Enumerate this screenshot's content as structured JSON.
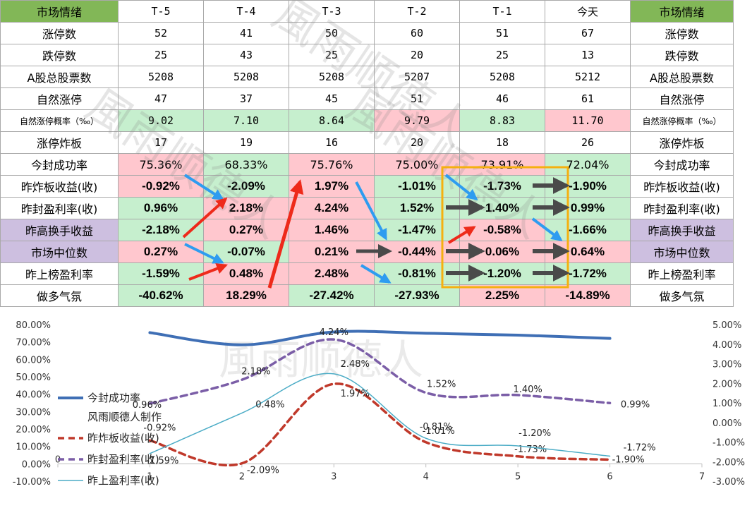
{
  "table": {
    "header": [
      "市场情绪",
      "T-5",
      "T-4",
      "T-3",
      "T-2",
      "T-1",
      "今天",
      "市场情绪"
    ],
    "rows": [
      {
        "label": "涨停数",
        "values": [
          "52",
          "41",
          "50",
          "60",
          "51",
          "67"
        ],
        "color": "red",
        "bg": [
          "",
          "",
          "",
          "",
          "",
          ""
        ],
        "style": "num"
      },
      {
        "label": "跌停数",
        "values": [
          "25",
          "43",
          "25",
          "20",
          "25",
          "13"
        ],
        "color": "green",
        "bg": [
          "",
          "",
          "",
          "",
          "",
          ""
        ],
        "style": "num"
      },
      {
        "label": "A股总股票数",
        "values": [
          "5208",
          "5208",
          "5208",
          "5207",
          "5208",
          "5212"
        ],
        "color": "black",
        "bg": [
          "",
          "",
          "",
          "",
          "",
          ""
        ],
        "style": "num"
      },
      {
        "label": "自然涨停",
        "values": [
          "47",
          "37",
          "45",
          "51",
          "46",
          "61"
        ],
        "color": "red",
        "bg": [
          "",
          "",
          "",
          "",
          "",
          ""
        ],
        "style": "num"
      },
      {
        "label": "自然涨停概率（‰）",
        "values": [
          "9.02",
          "7.10",
          "8.64",
          "9.79",
          "8.83",
          "11.70"
        ],
        "color": "mixed",
        "bg": [
          "lgreen",
          "lgreen",
          "lgreen",
          "pink",
          "lgreen",
          "pink"
        ],
        "style": "num",
        "small": true
      },
      {
        "label": "涨停炸板",
        "values": [
          "17",
          "19",
          "16",
          "20",
          "18",
          "26"
        ],
        "color": "green",
        "bg": [
          "",
          "",
          "",
          "",
          "",
          ""
        ],
        "style": "num"
      },
      {
        "label": "今封成功率",
        "values": [
          "75.36%",
          "68.33%",
          "75.76%",
          "75.00%",
          "73.91%",
          "72.04%"
        ],
        "color": "black",
        "bg": [
          "pink",
          "lgreen",
          "pink",
          "pink",
          "pink",
          "lgreen"
        ],
        "style": "plain"
      },
      {
        "label": "昨炸板收益(收)",
        "values": [
          "-0.92%",
          "-2.09%",
          "1.97%",
          "-1.01%",
          "-1.73%",
          "-1.90%"
        ],
        "color": "mixed",
        "bg": [
          "pink",
          "lgreen",
          "pink",
          "lgreen",
          "lgreen",
          "lgreen"
        ],
        "style": "bold"
      },
      {
        "label": "昨封盈利率(收)",
        "values": [
          "0.96%",
          "2.18%",
          "4.24%",
          "1.52%",
          "1.40%",
          "0.99%"
        ],
        "color": "mixed",
        "bg": [
          "lgreen",
          "pink",
          "pink",
          "lgreen",
          "lgreen",
          "lgreen"
        ],
        "style": "bold"
      },
      {
        "label": "昨高换手收益",
        "values": [
          "-2.18%",
          "0.27%",
          "1.46%",
          "-1.47%",
          "-0.58%",
          "-1.66%"
        ],
        "color": "mixed",
        "bg": [
          "lgreen",
          "pink",
          "pink",
          "lgreen",
          "pink",
          "lgreen"
        ],
        "style": "bold",
        "labelBg": "purple"
      },
      {
        "label": "市场中位数",
        "values": [
          "0.27%",
          "-0.07%",
          "0.21%",
          "-0.44%",
          "0.06%",
          "0.64%"
        ],
        "color": "mixed",
        "bg": [
          "pink",
          "lgreen",
          "pink",
          "pink",
          "pink",
          "pink"
        ],
        "style": "bold",
        "labelBg": "purple"
      },
      {
        "label": "昨上榜盈利率",
        "values": [
          "-1.59%",
          "0.48%",
          "2.48%",
          "-0.81%",
          "-1.20%",
          "-1.72%"
        ],
        "color": "mixed",
        "bg": [
          "lgreen",
          "pink",
          "pink",
          "lgreen",
          "lgreen",
          "lgreen"
        ],
        "style": "bold"
      },
      {
        "label": "做多气氛",
        "values": [
          "-40.62%",
          "18.29%",
          "-27.42%",
          "-27.93%",
          "2.25%",
          "-14.89%"
        ],
        "color": "mixed",
        "bg": [
          "lgreen",
          "pink",
          "lgreen",
          "lgreen",
          "pink",
          "pink"
        ],
        "style": "bold"
      }
    ]
  },
  "colors": {
    "red": "#e03030",
    "green": "#20a060",
    "dark_red": "#c0102a",
    "dark_green": "#0a6a18",
    "pink": "#ffc7ce",
    "light_green": "#c6efce",
    "purple": "#cdbfe0",
    "header_green": "#82b757",
    "highlight_box": "#f5b010",
    "arrow_blue": "#2e9cf0",
    "arrow_red": "#ee2a1a",
    "arrow_gray": "#4a4a4a"
  },
  "watermark": "風雨顺德人",
  "chart_data": {
    "type": "line",
    "x": [
      1,
      2,
      3,
      4,
      5,
      6
    ],
    "xlim": [
      0,
      7
    ],
    "x_ticks": [
      "0",
      "1",
      "2",
      "3",
      "4",
      "5",
      "6",
      "7"
    ],
    "y_left_ticks": [
      "80.00%",
      "70.00%",
      "60.00%",
      "50.00%",
      "40.00%",
      "30.00%",
      "20.00%",
      "10.00%",
      "0.00%",
      "-10.00%"
    ],
    "y_right_ticks": [
      "5.00%",
      "4.00%",
      "3.00%",
      "2.00%",
      "1.00%",
      "0.00%",
      "-1.00%",
      "-2.00%",
      "-3.00%"
    ],
    "ylim_left": [
      -10,
      80
    ],
    "ylim_right": [
      -3,
      5
    ],
    "note": "风雨顺德人制作",
    "series": [
      {
        "name": "今封成功率",
        "axis": "left",
        "values": [
          75.36,
          68.33,
          75.76,
          75.0,
          73.91,
          72.04
        ],
        "color": "#3f6fb5",
        "style": "solid-thick",
        "labels": []
      },
      {
        "name": "昨炸板收益(收)",
        "axis": "right",
        "values": [
          -0.92,
          -2.09,
          1.97,
          -1.01,
          -1.73,
          -1.9
        ],
        "color": "#c0392b",
        "style": "dashed",
        "labels": [
          "-0.92%",
          "-2.09%",
          "1.97%",
          "-1.01%",
          "-1.73%",
          "-1.90%"
        ]
      },
      {
        "name": "昨封盈利率(收)",
        "axis": "right",
        "values": [
          0.96,
          2.18,
          4.24,
          1.52,
          1.4,
          0.99
        ],
        "color": "#7b5ea7",
        "style": "dashed",
        "labels": [
          "0.96%",
          "2.18%",
          "4.24%",
          "1.52%",
          "1.40%",
          "0.99%"
        ]
      },
      {
        "name": "昨上盈利率(收)",
        "axis": "right",
        "values": [
          -1.59,
          0.48,
          2.48,
          -0.81,
          -1.2,
          -1.72
        ],
        "color": "#4bacc6",
        "style": "thin",
        "labels": [
          "-1.59%",
          "0.48%",
          "2.48%",
          "-0.81%",
          "-1.20%",
          "-1.72%"
        ]
      }
    ]
  }
}
